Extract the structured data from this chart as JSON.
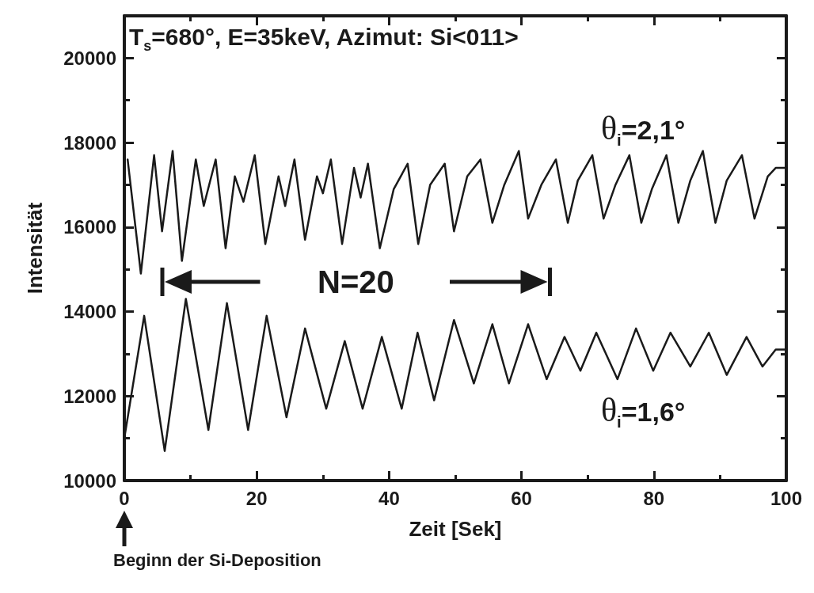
{
  "chart_data": {
    "type": "line",
    "title": "T$_{s}$=680°,  E=35keV, Azimut: Si<011>",
    "xlabel": "Zeit [Sek]",
    "ylabel": "Intensität",
    "xlim": [
      0,
      100
    ],
    "xticks": [
      0,
      20,
      40,
      60,
      80,
      100
    ],
    "ylim": [
      10000,
      21000
    ],
    "yticks": [
      10000,
      12000,
      14000,
      16000,
      18000,
      20000
    ],
    "grid": false,
    "legend": false,
    "marker": "none",
    "line_style": "solid",
    "annotations": [
      "N=20",
      "Beginn der Si-Deposition"
    ],
    "series": [
      {
        "name": "θ$_{i}$=2,1°",
        "color": "#1a1a1a",
        "x": [
          0.5,
          2.5,
          4.5,
          5.7,
          7.3,
          8.7,
          10.8,
          12.0,
          13.8,
          15.3,
          16.7,
          18.0,
          19.7,
          21.3,
          23.3,
          24.3,
          25.7,
          27.3,
          29.1,
          30.0,
          31.2,
          32.9,
          34.7,
          35.7,
          36.8,
          38.6,
          40.7,
          42.8,
          44.4,
          46.2,
          48.4,
          49.8,
          51.8,
          53.8,
          55.6,
          57.4,
          59.6,
          61.0,
          63.0,
          65.2,
          67.0,
          68.5,
          70.7,
          72.4,
          74.2,
          76.3,
          78.1,
          79.7,
          81.9,
          83.7,
          85.5,
          87.4,
          89.3,
          91.0,
          93.3,
          95.2,
          97.2,
          98.4,
          100
        ],
        "values": [
          17600,
          14900,
          17700,
          15900,
          17800,
          15200,
          17600,
          16500,
          17600,
          15500,
          17200,
          16600,
          17700,
          15600,
          17200,
          16500,
          17600,
          15700,
          17200,
          16800,
          17600,
          15600,
          17400,
          16700,
          17500,
          15500,
          16900,
          17500,
          15600,
          17000,
          17500,
          15900,
          17200,
          17600,
          16100,
          17000,
          17800,
          16200,
          17000,
          17600,
          16100,
          17100,
          17700,
          16200,
          17000,
          17700,
          16100,
          16900,
          17700,
          16100,
          17100,
          17800,
          16100,
          17100,
          17700,
          16200,
          17200,
          17400,
          17400
        ]
      },
      {
        "name": "θ$_{i}$=1,6°",
        "color": "#1a1a1a",
        "x": [
          0,
          3.0,
          6.1,
          9.3,
          12.7,
          15.5,
          18.7,
          21.5,
          24.5,
          27.3,
          30.5,
          33.3,
          36.0,
          38.9,
          41.9,
          44.3,
          46.8,
          49.8,
          52.8,
          55.6,
          58.1,
          61.0,
          63.8,
          66.5,
          68.9,
          71.3,
          74.5,
          77.3,
          79.9,
          82.5,
          85.5,
          88.3,
          91.0,
          94.0,
          96.4,
          98.4,
          100
        ],
        "values": [
          11000,
          13900,
          10700,
          14300,
          11200,
          14200,
          11200,
          13900,
          11500,
          13600,
          11700,
          13300,
          11700,
          13400,
          11700,
          13500,
          11900,
          13800,
          12300,
          13700,
          12300,
          13700,
          12400,
          13400,
          12600,
          13500,
          12400,
          13600,
          12600,
          13500,
          12700,
          13500,
          12500,
          13400,
          12700,
          13100,
          13100
        ]
      }
    ]
  }
}
